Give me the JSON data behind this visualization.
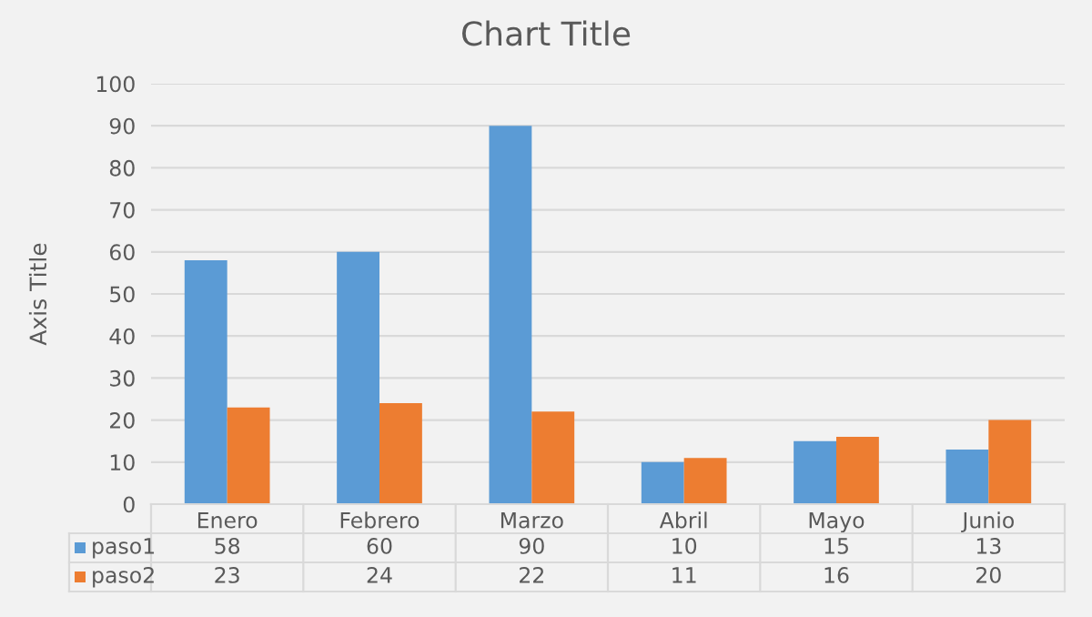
{
  "chart_data": {
    "type": "bar",
    "title": "Chart Title",
    "ylabel": "Axis Title",
    "categories": [
      "Enero",
      "Febrero",
      "Marzo",
      "Abril",
      "Mayo",
      "Junio"
    ],
    "series": [
      {
        "name": "paso1",
        "color": "#5b9bd5",
        "values": [
          58,
          60,
          90,
          10,
          15,
          13
        ]
      },
      {
        "name": "paso2",
        "color": "#ed7d31",
        "values": [
          23,
          24,
          22,
          11,
          16,
          20
        ]
      }
    ],
    "ylim": [
      0,
      100
    ],
    "yticks": [
      0,
      10,
      20,
      30,
      40,
      50,
      60,
      70,
      80,
      90,
      100
    ],
    "grid": "y",
    "data_labels": true,
    "legend": "bottom"
  }
}
